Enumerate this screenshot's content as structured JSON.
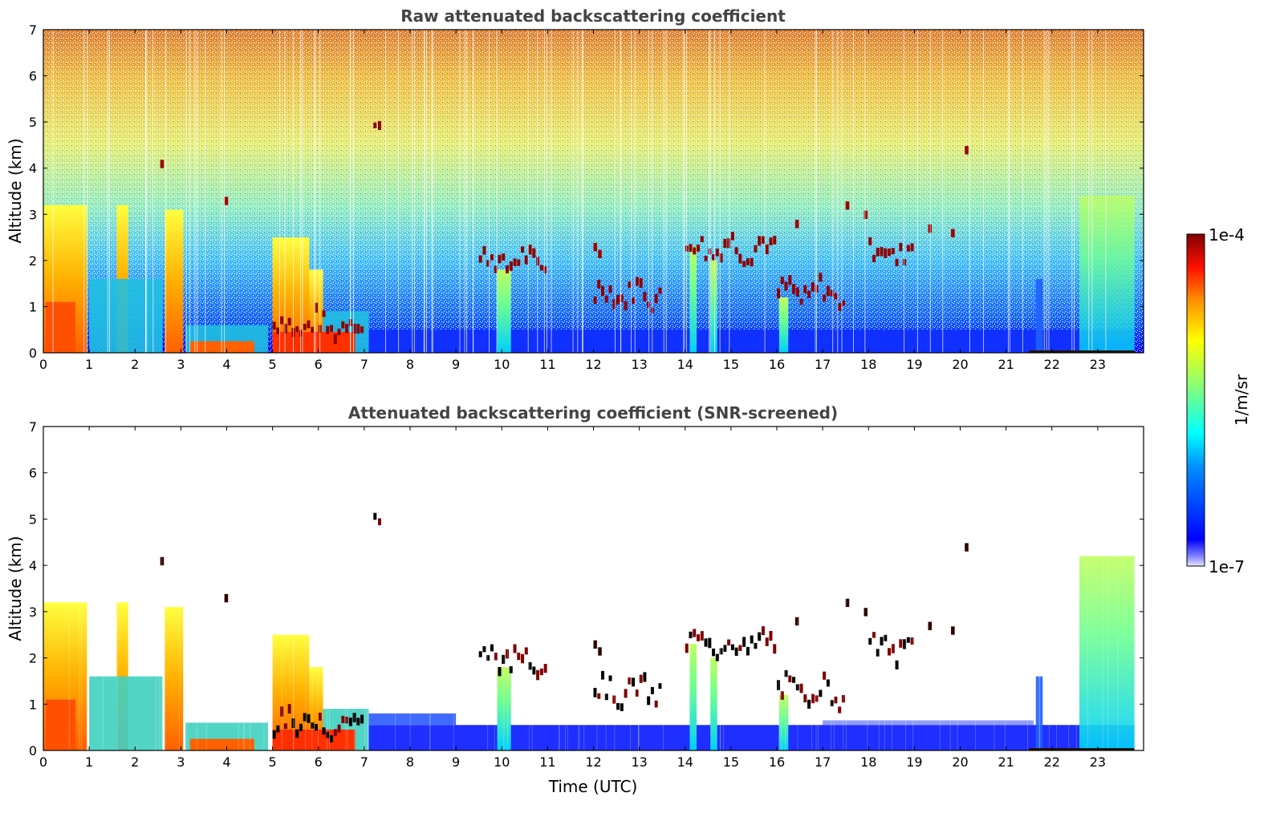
{
  "colors": {
    "colormap": [
      "#0000ff",
      "#0080ff",
      "#00ffff",
      "#80ff80",
      "#ffff00",
      "#ff8000",
      "#ff0000",
      "#800000"
    ],
    "frame": "#000000",
    "title": "#444444"
  },
  "chart_data": [
    {
      "type": "heatmap",
      "title": "Raw attenuated backscattering coefficient",
      "xlabel": "",
      "ylabel": "Altitude (km)",
      "xlim": [
        0,
        24
      ],
      "ylim": [
        0,
        7
      ],
      "x_ticks": [
        "0",
        "1",
        "2",
        "3",
        "4",
        "5",
        "6",
        "7",
        "8",
        "9",
        "10",
        "11",
        "12",
        "13",
        "14",
        "15",
        "16",
        "17",
        "18",
        "19",
        "20",
        "21",
        "22",
        "23"
      ],
      "y_ticks": [
        "0",
        "1",
        "2",
        "3",
        "4",
        "5",
        "6",
        "7"
      ],
      "cloud_layers": [
        {
          "t0": 5.0,
          "t1": 7.0,
          "alt": 0.5
        },
        {
          "t0": 9.5,
          "t1": 11.0,
          "alt": 1.9
        },
        {
          "t0": 12.0,
          "t1": 13.5,
          "alt": 1.2
        },
        {
          "t0": 14.0,
          "t1": 16.0,
          "alt": 2.2
        },
        {
          "t0": 16.0,
          "t1": 17.5,
          "alt": 1.2
        },
        {
          "t0": 18.0,
          "t1": 19.0,
          "alt": 2.1
        },
        {
          "t0": 7.2,
          "t1": 7.4,
          "alt": 4.95
        }
      ]
    },
    {
      "type": "heatmap",
      "title": "Attenuated backscattering coefficient (SNR-screened)",
      "xlabel": "Time (UTC)",
      "ylabel": "Altitude (km)",
      "xlim": [
        0,
        24
      ],
      "ylim": [
        0,
        7
      ],
      "x_ticks": [
        "0",
        "1",
        "2",
        "3",
        "4",
        "5",
        "6",
        "7",
        "8",
        "9",
        "10",
        "11",
        "12",
        "13",
        "14",
        "15",
        "16",
        "17",
        "18",
        "19",
        "20",
        "21",
        "22",
        "23"
      ],
      "y_ticks": [
        "0",
        "1",
        "2",
        "3",
        "4",
        "5",
        "6",
        "7"
      ]
    }
  ],
  "colorbar": {
    "max_label": "1e-4",
    "min_label": "1e-7",
    "unit_label": "1/m/sr"
  }
}
